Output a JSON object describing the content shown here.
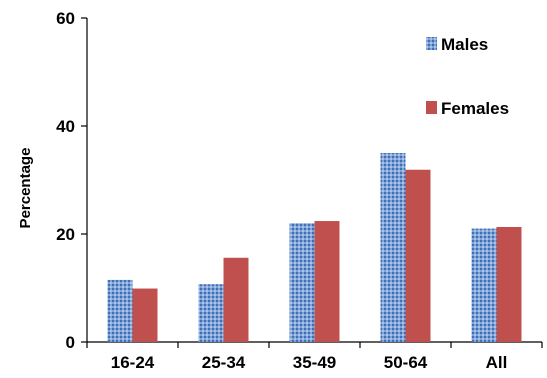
{
  "chart_data": {
    "type": "bar",
    "categories": [
      "16-24",
      "25-34",
      "35-49",
      "50-64",
      "All"
    ],
    "series": [
      {
        "name": "Males",
        "values": [
          11.5,
          10.7,
          22.0,
          35.0,
          21.0
        ],
        "color": "#4F81BD",
        "pattern": "dotted"
      },
      {
        "name": "Females",
        "values": [
          9.9,
          15.6,
          22.4,
          31.9,
          21.3
        ],
        "color": "#C0504D",
        "pattern": "solid"
      }
    ],
    "xlabel": "",
    "ylabel": "Percentage",
    "ylim": [
      0,
      60
    ],
    "yticks": [
      0,
      20,
      40,
      60
    ],
    "grid": false,
    "legend_position": "top-right"
  }
}
